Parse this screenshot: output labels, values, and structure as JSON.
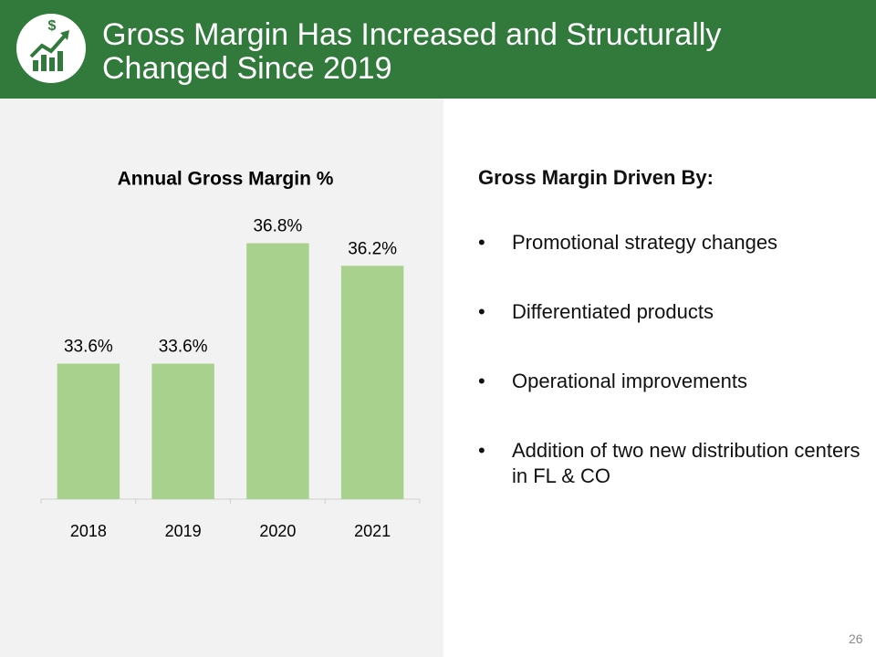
{
  "header": {
    "title": "Gross Margin Has Increased and Structurally Changed Since 2019"
  },
  "chart_data": {
    "type": "bar",
    "title": "Annual Gross Margin %",
    "categories": [
      "2018",
      "2019",
      "2020",
      "2021"
    ],
    "values": [
      33.6,
      33.6,
      36.8,
      36.2
    ],
    "value_labels": [
      "33.6%",
      "33.6%",
      "36.8%",
      "36.2%"
    ],
    "color": "#a9d18e",
    "ylim": [
      30,
      38
    ],
    "grid": false
  },
  "bullets": {
    "heading": "Gross Margin Driven By:",
    "items": [
      "Promotional strategy changes",
      "Differentiated products",
      "Operational improvements",
      "Addition of two new distribution centers in FL & CO"
    ]
  },
  "page_number": "26"
}
